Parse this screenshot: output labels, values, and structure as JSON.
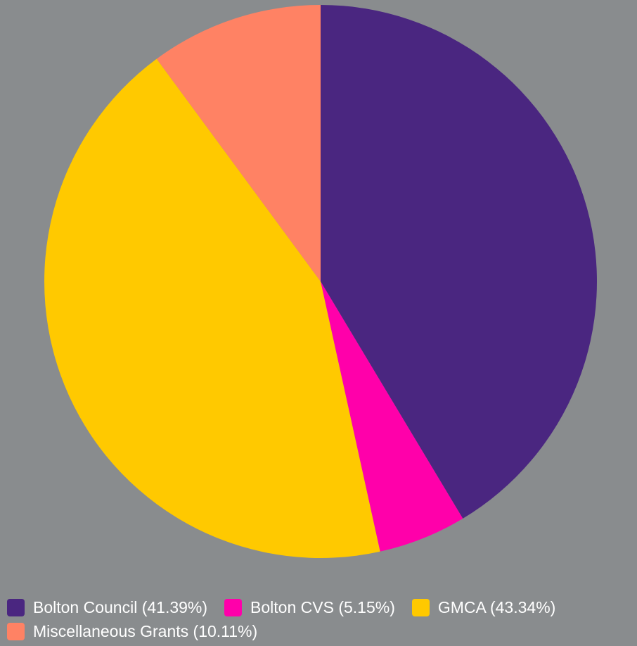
{
  "chart_data": {
    "type": "pie",
    "title": "",
    "start_angle_deg": 0,
    "direction": "clockwise",
    "legend_position": "bottom-left",
    "slices": [
      {
        "label": "Bolton Council (41.39%)",
        "value": 41.39,
        "color": "#4a2680"
      },
      {
        "label": "Bolton CVS (5.15%)",
        "value": 5.15,
        "color": "#ff00aa"
      },
      {
        "label": "GMCA (43.34%)",
        "value": 43.34,
        "color": "#ffc900"
      },
      {
        "label": "Miscellaneous Grants (10.11%)",
        "value": 10.11,
        "color": "#ff8264"
      }
    ]
  }
}
